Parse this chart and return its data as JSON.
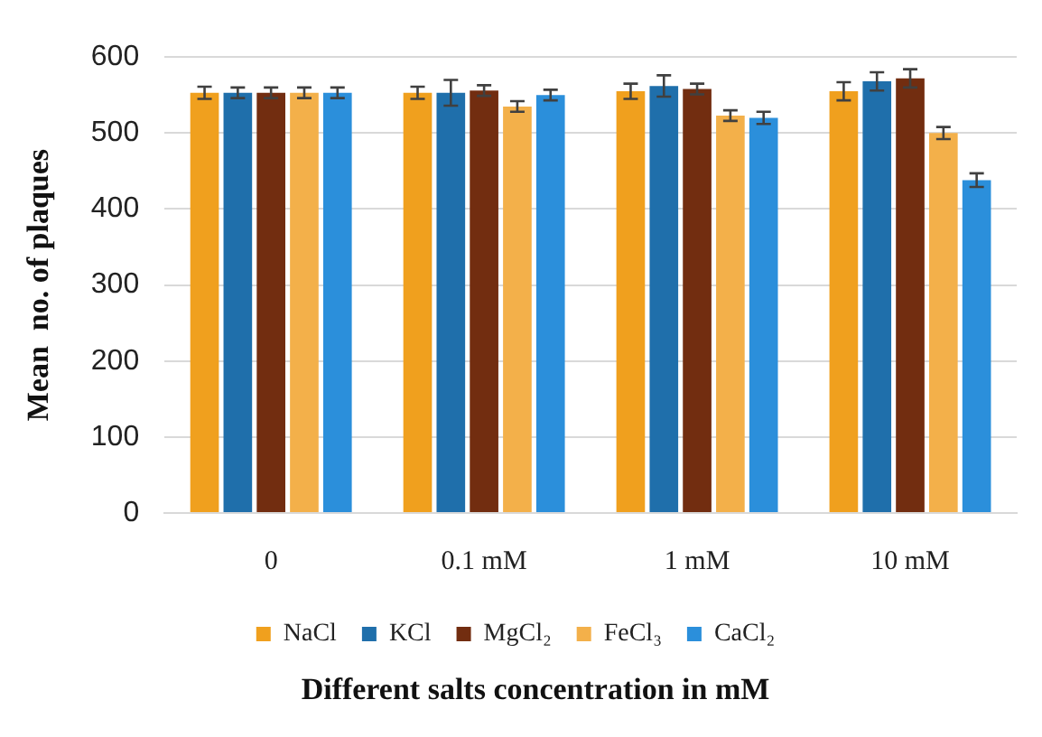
{
  "chart_data": {
    "type": "bar",
    "xlabel": "Different salts concentration in mM",
    "ylabel": "Mean  no. of plaques",
    "categories": [
      "0",
      "0.1 mM",
      "1 mM",
      "10 mM"
    ],
    "series": [
      {
        "name": "NaCl",
        "color": "#f0a01e",
        "values": [
          553,
          553,
          555,
          555
        ],
        "errors": [
          8,
          8,
          10,
          12
        ]
      },
      {
        "name": "KCl",
        "color": "#1f6fab",
        "values": [
          553,
          553,
          562,
          568
        ],
        "errors": [
          7,
          17,
          14,
          12
        ]
      },
      {
        "name": "MgCl₂",
        "color": "#722d10",
        "values": [
          553,
          556,
          558,
          572
        ],
        "errors": [
          7,
          7,
          7,
          12
        ]
      },
      {
        "name": "FeCl₃",
        "color": "#f3b04a",
        "values": [
          553,
          535,
          523,
          500
        ],
        "errors": [
          7,
          7,
          7,
          8
        ]
      },
      {
        "name": "CaCl₂",
        "color": "#2b8fdb",
        "values": [
          553,
          550,
          520,
          438
        ],
        "errors": [
          7,
          7,
          8,
          9
        ]
      }
    ],
    "ylim": [
      0,
      600
    ],
    "yticks": [
      0,
      100,
      200,
      300,
      400,
      500,
      600
    ],
    "grid": "y",
    "legend": "bottom"
  }
}
